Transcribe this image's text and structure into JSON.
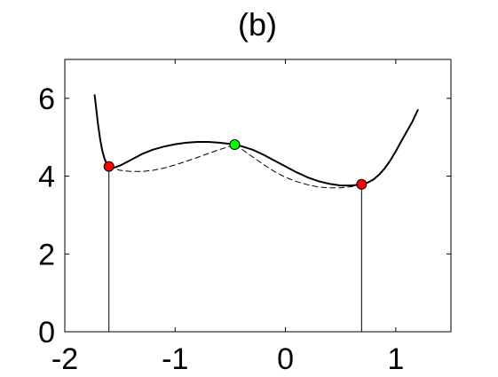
{
  "chart_data": {
    "type": "line",
    "title": "(b)",
    "xlabel": "",
    "ylabel": "",
    "xlim": [
      -2,
      1.5
    ],
    "ylim": [
      0,
      7
    ],
    "xticks": [
      -2,
      -1,
      0,
      1
    ],
    "yticks": [
      0,
      2,
      4,
      6
    ],
    "xtick_labels": [
      "-2",
      "-1",
      "0",
      "1"
    ],
    "ytick_labels": [
      "0",
      "2",
      "4",
      "6"
    ],
    "grid": false,
    "series": [
      {
        "style": "solid",
        "color": "#000000",
        "x": [
          -1.73,
          -1.72,
          -1.7,
          -1.68,
          -1.66,
          -1.64,
          -1.62,
          -1.6,
          -1.55,
          -1.5,
          -1.4,
          -1.3,
          -1.2,
          -1.1,
          -1.0,
          -0.9,
          -0.8,
          -0.7,
          -0.6,
          -0.5,
          -0.46,
          -0.4,
          -0.3,
          -0.2,
          -0.1,
          0.0,
          0.1,
          0.2,
          0.3,
          0.4,
          0.5,
          0.6,
          0.69,
          0.75,
          0.8,
          0.85,
          0.9,
          0.95,
          1.0,
          1.05,
          1.1,
          1.15,
          1.2
        ],
        "y": [
          6.08,
          5.85,
          5.35,
          4.95,
          4.65,
          4.45,
          4.32,
          4.25,
          4.22,
          4.27,
          4.42,
          4.57,
          4.68,
          4.76,
          4.82,
          4.86,
          4.88,
          4.88,
          4.86,
          4.83,
          4.81,
          4.77,
          4.68,
          4.55,
          4.4,
          4.25,
          4.1,
          3.97,
          3.87,
          3.8,
          3.76,
          3.76,
          3.79,
          3.84,
          3.92,
          4.04,
          4.2,
          4.4,
          4.64,
          4.9,
          5.15,
          5.4,
          5.7
        ]
      },
      {
        "style": "dashed",
        "color": "#000000",
        "x": [
          -1.6,
          -1.5,
          -1.4,
          -1.3,
          -1.2,
          -1.1,
          -1.0,
          -0.9,
          -0.8,
          -0.7,
          -0.6,
          -0.5,
          -0.46
        ],
        "y": [
          4.25,
          4.15,
          4.12,
          4.12,
          4.15,
          4.21,
          4.29,
          4.38,
          4.48,
          4.58,
          4.68,
          4.77,
          4.81
        ]
      },
      {
        "style": "dashed",
        "color": "#000000",
        "x": [
          -0.46,
          -0.4,
          -0.3,
          -0.2,
          -0.1,
          0.0,
          0.1,
          0.2,
          0.3,
          0.4,
          0.5,
          0.6,
          0.69
        ],
        "y": [
          4.81,
          4.7,
          4.5,
          4.3,
          4.12,
          3.97,
          3.86,
          3.78,
          3.72,
          3.7,
          3.7,
          3.73,
          3.79
        ]
      }
    ],
    "vertical_lines": [
      {
        "x": -1.6,
        "y_from": 0,
        "y_to": 4.25
      },
      {
        "x": 0.69,
        "y_from": 0,
        "y_to": 3.79
      }
    ],
    "points": [
      {
        "x": -1.6,
        "y": 4.25,
        "color": "#ff0000"
      },
      {
        "x": -0.46,
        "y": 4.81,
        "color": "#00ff00"
      },
      {
        "x": 0.69,
        "y": 3.79,
        "color": "#ff0000"
      }
    ]
  }
}
